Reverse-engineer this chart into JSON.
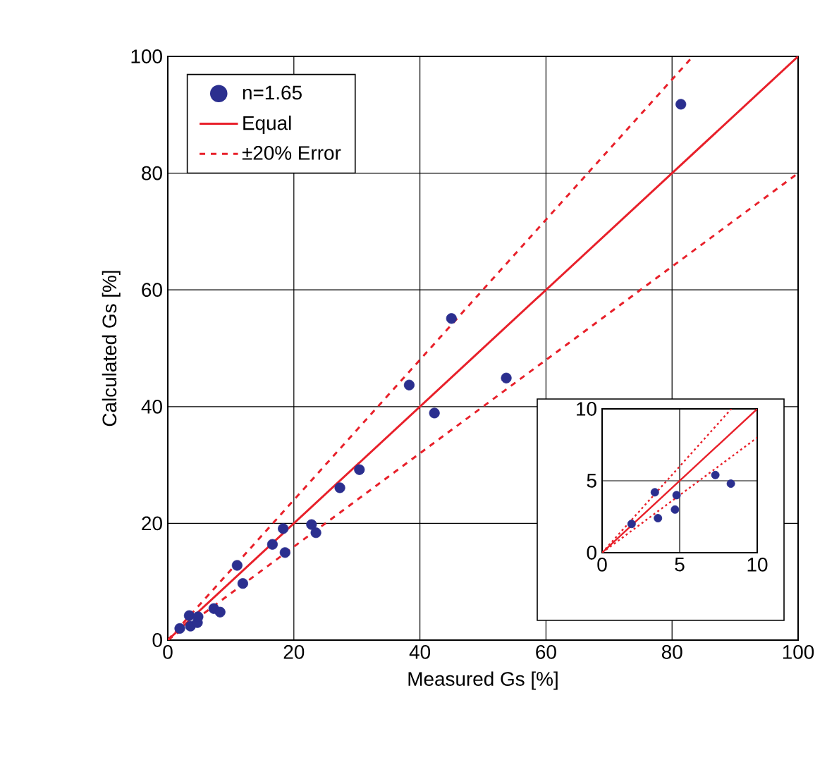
{
  "chart_data": [
    {
      "type": "scatter",
      "xlabel": "Measured Gs  [%]",
      "ylabel": "Calculated Gs  [%]",
      "xlim": [
        0,
        100
      ],
      "ylim": [
        0,
        100
      ],
      "xticks": [
        0,
        20,
        40,
        60,
        80,
        100
      ],
      "yticks": [
        0,
        20,
        40,
        60,
        80,
        100
      ],
      "grid": true,
      "legend": "top left",
      "series": [
        {
          "name": "n=1.65",
          "marker": "circle",
          "color": "#2b2f8f",
          "x": [
            1.9,
            3.4,
            3.6,
            4.7,
            4.8,
            7.3,
            8.3,
            11.0,
            11.9,
            16.6,
            18.3,
            18.6,
            22.8,
            23.5,
            27.3,
            30.4,
            38.3,
            42.3,
            45.0,
            53.7,
            81.4
          ],
          "values": [
            2.0,
            4.2,
            2.4,
            3.0,
            4.0,
            5.4,
            4.8,
            12.8,
            9.7,
            16.4,
            19.1,
            15.0,
            19.8,
            18.4,
            26.1,
            29.2,
            43.7,
            38.9,
            55.1,
            44.9,
            91.8
          ]
        },
        {
          "name": "Equal",
          "type": "line",
          "line_style": "solid",
          "color": "#e8202a",
          "x": [
            0,
            100
          ],
          "values": [
            0,
            100
          ]
        },
        {
          "name": "±20% Error",
          "type": "line",
          "line_style": "dashed",
          "color": "#e8202a",
          "x": [
            0,
            83.3
          ],
          "values": [
            0,
            100
          ]
        },
        {
          "type": "line",
          "line_style": "dashed",
          "color": "#e8202a",
          "x": [
            0,
            100
          ],
          "values": [
            0,
            80
          ]
        }
      ]
    },
    {
      "type": "scatter",
      "xlim": [
        0,
        10
      ],
      "ylim": [
        0,
        10
      ],
      "xticks": [
        0,
        5,
        10
      ],
      "yticks": [
        0,
        5,
        10
      ],
      "grid": true,
      "series": [
        {
          "marker": "circle",
          "color": "#2b2f8f",
          "x": [
            1.9,
            3.4,
            3.6,
            4.7,
            4.8,
            7.3,
            8.3
          ],
          "values": [
            2.0,
            4.2,
            2.4,
            3.0,
            4.0,
            5.4,
            4.8
          ]
        },
        {
          "type": "line",
          "line_style": "solid",
          "color": "#e8202a",
          "x": [
            0,
            10
          ],
          "values": [
            0,
            10
          ]
        },
        {
          "type": "line",
          "line_style": "dotted",
          "color": "#e8202a",
          "x": [
            0,
            8.33
          ],
          "values": [
            0,
            10
          ]
        },
        {
          "type": "line",
          "line_style": "dotted",
          "color": "#e8202a",
          "x": [
            0,
            10
          ],
          "values": [
            0,
            8
          ]
        }
      ]
    }
  ]
}
